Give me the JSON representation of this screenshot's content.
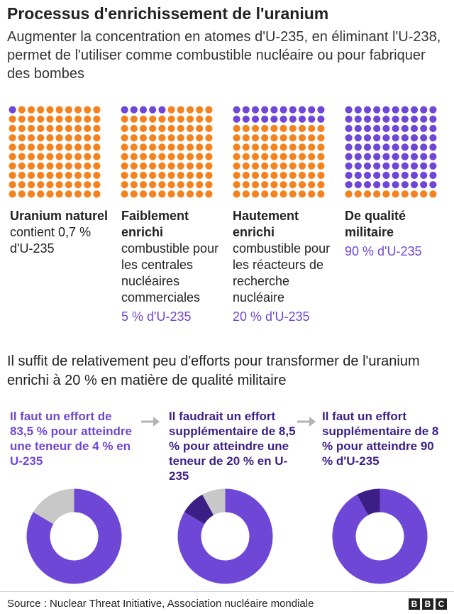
{
  "header": {
    "title": "Processus d'enrichissement de l'uranium",
    "subtitle": "Augmenter la concentration en atomes d'U-235, en éliminant l'U-238, permet de l'utiliser comme combustible nucléaire ou pour fabriquer des bombes"
  },
  "colors": {
    "u235": "#6e47d6",
    "u238": "#f4831f",
    "dark": "#3b1f87",
    "done": "#c8c8c8",
    "label_light": "#6e47d6",
    "label_dark": "#3b1f87"
  },
  "chart_data": [
    {
      "type": "waffle",
      "grid": [
        10,
        10
      ],
      "categories": [
        {
          "name": "Uranium naturel",
          "description": "contient 0,7 % d'U-235",
          "pct_label": "",
          "u235_dots": 1
        },
        {
          "name": "Faiblement enrichi",
          "description": "combustible pour les centrales nucléaires commerciales",
          "pct_label": "5 % d'U-235",
          "u235_dots": 5
        },
        {
          "name": "Hautement enrichi",
          "description": "combustible pour les réacteurs de recherche nucléaire",
          "pct_label": "20 % d'U-235",
          "u235_dots": 20
        },
        {
          "name": "De qualité militaire",
          "description": "",
          "pct_label": "90 % d'U-235",
          "u235_dots": 90
        }
      ]
    },
    {
      "type": "pie",
      "title": "Il suffit de relativement peu d'efforts pour transformer de l'uranium enrichi à 20 % en matière de qualité militaire",
      "charts": [
        {
          "text": "Il faut un effort de 83,5 % pour atteindre une teneur de 4 % en U-235",
          "slices": [
            {
              "kind": "remaining",
              "value": 83.5
            },
            {
              "kind": "done",
              "value": 16.5
            }
          ]
        },
        {
          "text": "Il faudrait un effort supplémentaire de 8,5 % pour atteindre une teneur de 20 % en U-235",
          "slices": [
            {
              "kind": "remaining",
              "value": 83.5
            },
            {
              "kind": "step",
              "value": 8.5
            },
            {
              "kind": "done",
              "value": 8
            }
          ]
        },
        {
          "text": "Il faut un effort supplémentaire de 8 % pour atteindre 90 % d'U-235",
          "slices": [
            {
              "kind": "remaining",
              "value": 92
            },
            {
              "kind": "step",
              "value": 8
            }
          ]
        }
      ]
    }
  ],
  "footer": {
    "source": "Source : Nuclear Threat Initiative, Association nucléaire mondiale",
    "logo": [
      "B",
      "B",
      "C"
    ]
  }
}
